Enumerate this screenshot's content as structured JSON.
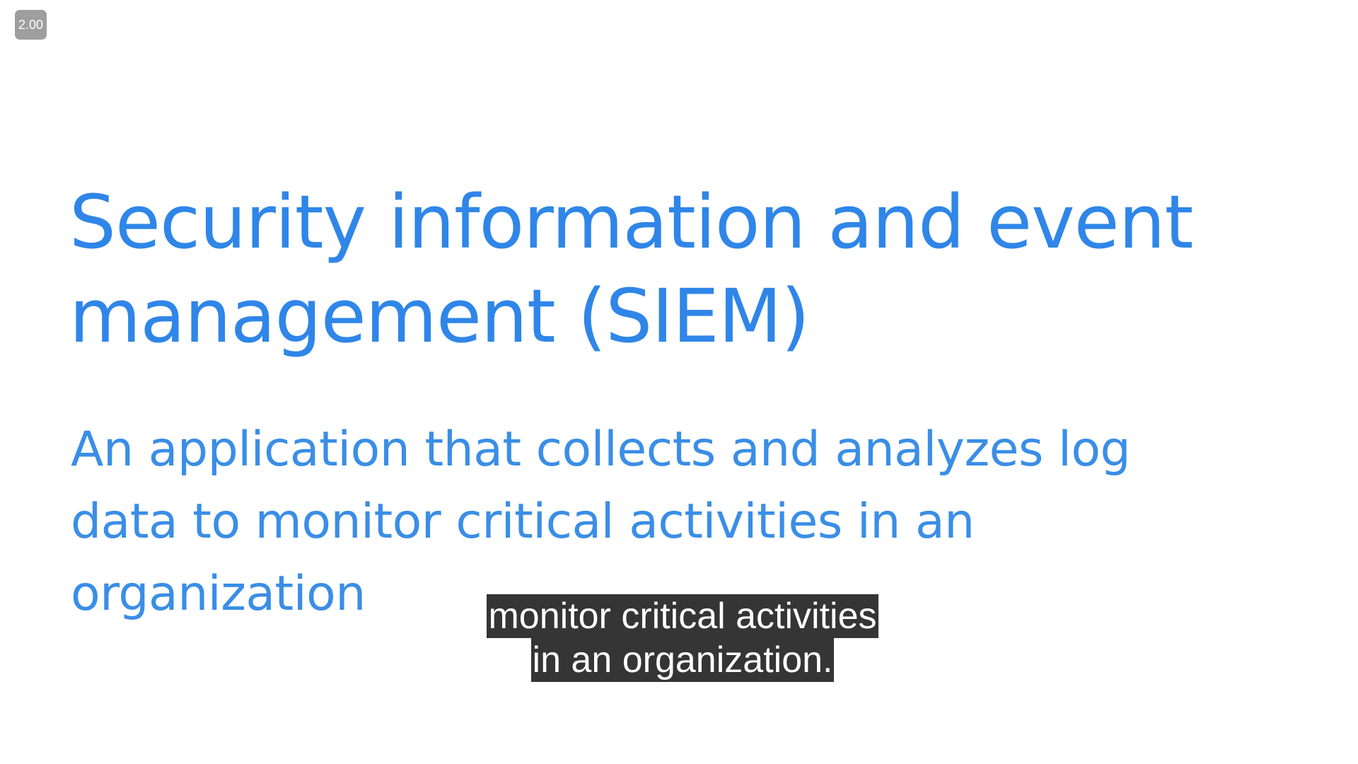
{
  "player": {
    "playback_speed": "2.00"
  },
  "slide": {
    "title_line1": "Security information and event",
    "title_line2": "management (SIEM)",
    "body_line1": "An application that collects and analyzes log",
    "body_line2": "data to monitor critical activities in an",
    "body_line3": "organization"
  },
  "captions": {
    "line1": "monitor critical activities",
    "line2": "in an organization."
  },
  "colors": {
    "title": "#2f86e8",
    "body": "#3a8ee6",
    "caption_bg": "#141414",
    "badge_bg": "#9e9e9e"
  }
}
